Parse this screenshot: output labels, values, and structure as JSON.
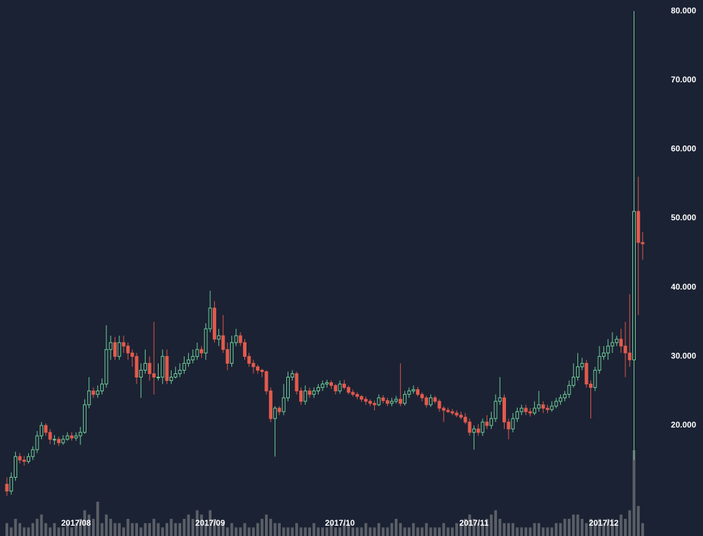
{
  "chart_data": {
    "type": "candlestick",
    "up_color": "#6fd19b",
    "down_color": "#e25a4c",
    "volume_color": "#5b5f67",
    "background": "#1b2233",
    "ylim": [
      4,
      81.6
    ],
    "yticks": [
      {
        "value": 20,
        "label": "20.000"
      },
      {
        "value": 30,
        "label": "30.000"
      },
      {
        "value": 40,
        "label": "40.000"
      },
      {
        "value": 50,
        "label": "50.000"
      },
      {
        "value": 60,
        "label": "60.000"
      },
      {
        "value": 70,
        "label": "70.000"
      },
      {
        "value": 80,
        "label": "80.000"
      }
    ],
    "categories": [
      null,
      null,
      null,
      null,
      null,
      null,
      null,
      null,
      null,
      null,
      null,
      null,
      null,
      null,
      null,
      null,
      "2017/08",
      null,
      null,
      null,
      null,
      null,
      null,
      null,
      null,
      null,
      null,
      null,
      null,
      null,
      null,
      null,
      null,
      null,
      null,
      null,
      null,
      null,
      null,
      null,
      null,
      null,
      null,
      null,
      null,
      null,
      null,
      "2017/09",
      null,
      null,
      null,
      null,
      null,
      null,
      null,
      null,
      null,
      null,
      null,
      null,
      null,
      null,
      null,
      null,
      null,
      null,
      null,
      null,
      null,
      null,
      null,
      null,
      null,
      null,
      null,
      null,
      null,
      "2017/10",
      null,
      null,
      null,
      null,
      null,
      null,
      null,
      null,
      null,
      null,
      null,
      null,
      null,
      null,
      null,
      null,
      null,
      null,
      null,
      null,
      null,
      null,
      null,
      null,
      null,
      null,
      null,
      null,
      null,
      null,
      "2017/11",
      null,
      null,
      null,
      null,
      null,
      null,
      null,
      null,
      null,
      null,
      null,
      null,
      null,
      null,
      null,
      null,
      null,
      null,
      null,
      null,
      null,
      null,
      null,
      null,
      null,
      null,
      null,
      null,
      null,
      "2017/12",
      null,
      null,
      null,
      null,
      null,
      null,
      null,
      null,
      null
    ],
    "open": [
      11.5,
      10.5,
      12.5,
      15.5,
      15,
      14.8,
      15.5,
      16.5,
      18.5,
      20,
      19,
      18,
      18,
      17.5,
      18,
      18.5,
      18.2,
      18.5,
      19,
      23,
      25,
      24.5,
      25,
      26,
      31,
      32,
      30,
      32,
      31.5,
      30.5,
      30,
      27,
      28,
      29,
      27.5,
      27,
      27,
      30,
      26.5,
      27,
      27.5,
      28,
      29,
      29.5,
      30,
      31,
      30.5,
      34,
      37,
      32.5,
      33,
      31,
      29,
      32,
      33,
      32,
      30,
      29,
      28.5,
      28,
      27.8,
      25,
      21,
      22.5,
      22,
      24,
      27,
      27.5,
      25,
      23.5,
      25,
      24.5,
      25,
      25.5,
      26,
      26.2,
      25.8,
      25,
      26,
      25.5,
      24.8,
      24.5,
      24.2,
      23.8,
      23.5,
      23.2,
      23,
      24,
      23.6,
      23.2,
      23.5,
      23.8,
      23.2,
      24.5,
      25,
      25.2,
      24.5,
      24,
      23,
      24,
      23.5,
      22.5,
      22.2,
      22,
      21.8,
      21.5,
      21.2,
      20.5,
      19,
      19.5,
      19,
      20.5,
      20,
      21,
      23.5,
      24,
      20.5,
      19.5,
      21,
      22,
      22.5,
      22,
      21.8,
      22.5,
      23,
      22.5,
      22.3,
      22.8,
      23.5,
      24,
      24.5,
      25.8,
      27,
      28.5,
      29,
      26,
      25.5,
      28,
      30,
      30.5,
      31.5,
      32,
      32.5,
      31.5,
      30.5,
      29.5,
      51,
      46.5
    ],
    "high": [
      12.5,
      13.2,
      16.2,
      16,
      15.6,
      16,
      17,
      19.2,
      20.5,
      20.3,
      19.5,
      18.6,
      18.4,
      18.6,
      19,
      19,
      19,
      19.8,
      23.8,
      27,
      25.5,
      25.8,
      26.8,
      34.5,
      33,
      32.8,
      33,
      33,
      32,
      31,
      30.5,
      29,
      31,
      30,
      35,
      29,
      31,
      31,
      28,
      28.5,
      29,
      30,
      30.5,
      31,
      32,
      31.5,
      34.8,
      39.5,
      38,
      34,
      36,
      32,
      33,
      34,
      33.5,
      32.5,
      30.5,
      29.5,
      28.8,
      28.2,
      28,
      25.5,
      22.8,
      22.8,
      26,
      27.8,
      28,
      27.8,
      25.5,
      25.8,
      25.5,
      25.5,
      26,
      26.5,
      26.6,
      26.5,
      26,
      26.5,
      26.6,
      25.8,
      25.2,
      24.8,
      24.4,
      24.2,
      23.8,
      23.6,
      24.5,
      24.4,
      24,
      24,
      24.3,
      29,
      25,
      25.5,
      25.8,
      25.6,
      24.8,
      24.3,
      24.5,
      24.3,
      23.8,
      22.8,
      22.6,
      22.4,
      22.2,
      22,
      21.8,
      21,
      20,
      20.2,
      21,
      21.5,
      22,
      24.5,
      27,
      24.5,
      21,
      21.8,
      22.6,
      23,
      23,
      22.5,
      23.5,
      25,
      23.5,
      23,
      23.5,
      24,
      24.5,
      25,
      26.5,
      29,
      30.5,
      29.8,
      29.5,
      26.5,
      28.5,
      31.5,
      31.5,
      32.5,
      33.5,
      33,
      34,
      35,
      39,
      80,
      56,
      48
    ],
    "low": [
      9.8,
      10,
      12,
      14.5,
      14.2,
      14.5,
      15,
      16,
      18,
      18.5,
      17.3,
      17.2,
      17,
      17.2,
      17.8,
      17.8,
      17.8,
      17.2,
      18.8,
      22.5,
      24,
      24,
      24.5,
      25.5,
      29.5,
      29.5,
      29.5,
      30.5,
      29.5,
      28.5,
      26,
      24,
      27.5,
      26.5,
      24.5,
      26.5,
      26,
      26,
      26,
      26.8,
      27,
      27.5,
      28.5,
      29,
      29.5,
      29.8,
      29.5,
      33.5,
      32,
      31.5,
      30.5,
      28,
      28.5,
      31.5,
      31.5,
      29.5,
      28.5,
      27.5,
      27.5,
      27,
      24.5,
      20.5,
      15.5,
      21.5,
      21.5,
      23.5,
      26.5,
      24.5,
      23,
      23,
      24,
      24,
      24.5,
      25,
      25.5,
      25.3,
      24.5,
      24.6,
      25.2,
      24.5,
      24.2,
      23.8,
      23.4,
      23,
      22.8,
      22.2,
      22.8,
      23.2,
      22.8,
      22.8,
      23.2,
      22.8,
      22.9,
      24,
      24.6,
      24.2,
      23.5,
      22.6,
      22.7,
      23.2,
      22,
      20.5,
      21.8,
      21.5,
      21.2,
      20.9,
      20.2,
      18.5,
      16.5,
      18.5,
      18.5,
      19.5,
      19.5,
      20.5,
      23,
      19.5,
      18,
      19,
      20.5,
      21.5,
      21.5,
      21.3,
      21.5,
      22,
      21.8,
      21.8,
      22,
      22.5,
      23,
      23.5,
      24,
      25.5,
      26.5,
      28,
      25.5,
      21,
      25,
      27.5,
      29.5,
      29.5,
      30.5,
      31.5,
      30.5,
      27,
      28.5,
      15,
      36,
      44
    ],
    "close": [
      10.5,
      12.5,
      15.5,
      15,
      14.8,
      15.5,
      16.5,
      18.5,
      20,
      19,
      18,
      18,
      17.5,
      18,
      18.5,
      18.2,
      18.5,
      19,
      23,
      25,
      24.5,
      25,
      26,
      31,
      32,
      30,
      32,
      31.5,
      30.5,
      30,
      27,
      28,
      29,
      27.5,
      27,
      27,
      30,
      26.5,
      27,
      27.5,
      28,
      29,
      29.5,
      30,
      31,
      30.5,
      34,
      37,
      32.5,
      33,
      31,
      29,
      32,
      33,
      32,
      30,
      29,
      28.5,
      28,
      27.8,
      25,
      21,
      22.5,
      22,
      24,
      27,
      27.5,
      25,
      23.5,
      25,
      24.5,
      25,
      25.5,
      26,
      26.2,
      25.8,
      25,
      26,
      25.5,
      24.8,
      24.5,
      24.2,
      23.8,
      23.5,
      23.2,
      23,
      24,
      23.6,
      23.2,
      23.5,
      23.8,
      23.2,
      24.5,
      25,
      25.2,
      24.5,
      24,
      23,
      24,
      23.5,
      22.5,
      22.2,
      22,
      21.8,
      21.5,
      21.2,
      20.5,
      19,
      19.5,
      19,
      20.5,
      20,
      21,
      23.5,
      24,
      20.5,
      19.5,
      21,
      22,
      22.5,
      22,
      21.8,
      22.5,
      23,
      22.5,
      22.3,
      22.8,
      23.5,
      24,
      24.5,
      25.8,
      27,
      28.5,
      29,
      26,
      25.5,
      28,
      30,
      30.5,
      31.5,
      32,
      32.5,
      31.5,
      30.5,
      29.5,
      51,
      46.5,
      46.3
    ],
    "volume": [
      3,
      2,
      4,
      3,
      2,
      2,
      3,
      4,
      5,
      3,
      2,
      3,
      2,
      2,
      3,
      2,
      3,
      4,
      6,
      5,
      4,
      8,
      3,
      5,
      4,
      3,
      3,
      2,
      4,
      3,
      3,
      2,
      3,
      3,
      4,
      3,
      2,
      3,
      4,
      3,
      3,
      4,
      5,
      4,
      6,
      5,
      3,
      6,
      4,
      3,
      3,
      2,
      3,
      2,
      2,
      3,
      2,
      2,
      3,
      4,
      5,
      4,
      3,
      3,
      2,
      2,
      2,
      3,
      2,
      2,
      2,
      3,
      2,
      2,
      2,
      3,
      2,
      2,
      3,
      3,
      2,
      2,
      2,
      3,
      2,
      2,
      3,
      2,
      2,
      3,
      4,
      3,
      2,
      2,
      3,
      2,
      2,
      3,
      2,
      2,
      2,
      3,
      2,
      2,
      3,
      3,
      4,
      5,
      4,
      3,
      3,
      4,
      5,
      6,
      4,
      3,
      3,
      3,
      2,
      2,
      2,
      2,
      3,
      3,
      2,
      2,
      2,
      3,
      3,
      4,
      4,
      5,
      5,
      4,
      3,
      4,
      3,
      4,
      3,
      4,
      4,
      3,
      5,
      4,
      6,
      20,
      7,
      3
    ]
  }
}
